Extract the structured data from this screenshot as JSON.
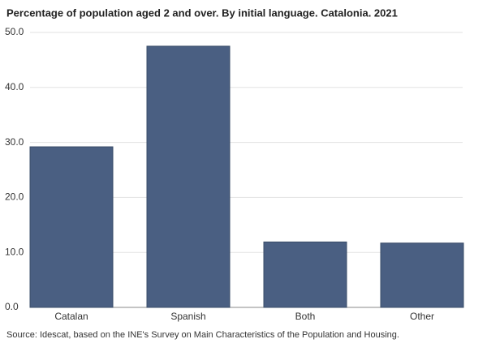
{
  "chart_data": {
    "type": "bar",
    "title": "Percentage of population aged 2 and over. By initial language. Catalonia. 2021",
    "source": "Source: Idescat, based on the INE's Survey on Main Characteristics of the Population and Housing.",
    "categories": [
      "Catalan",
      "Spanish",
      "Both",
      "Other"
    ],
    "values": [
      29.2,
      47.5,
      11.9,
      11.7
    ],
    "color": "#4a5f82",
    "ylim": [
      0,
      50
    ],
    "yticks": [
      {
        "value": 0,
        "label": "0.0"
      },
      {
        "value": 10,
        "label": "10.0"
      },
      {
        "value": 20,
        "label": "20.0"
      },
      {
        "value": 30,
        "label": "30.0"
      },
      {
        "value": 40,
        "label": "40.0"
      },
      {
        "value": 50,
        "label": "50.0"
      }
    ],
    "grid": true
  }
}
